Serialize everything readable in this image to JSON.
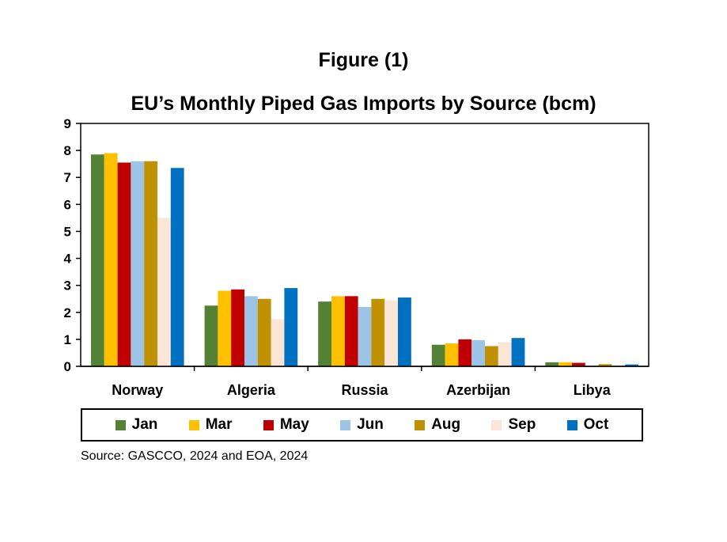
{
  "figure_label": "Figure (1)",
  "source": "Source: GASCCO, 2024 and EOA, 2024",
  "chart_data": {
    "type": "bar",
    "title": "EU’s Monthly Piped Gas Imports by Source (bcm)",
    "xlabel": "",
    "ylabel": "",
    "ylim": [
      0,
      9
    ],
    "yticks": [
      0,
      1,
      2,
      3,
      4,
      5,
      6,
      7,
      8,
      9
    ],
    "grid": false,
    "legend_position": "bottom",
    "categories": [
      "Norway",
      "Algeria",
      "Russia",
      "Azerbijan",
      "Libya"
    ],
    "series": [
      {
        "name": "Jan",
        "color": "#548235",
        "values": [
          7.85,
          2.25,
          2.4,
          0.8,
          0.15
        ]
      },
      {
        "name": "Mar",
        "color": "#ffc000",
        "values": [
          7.9,
          2.8,
          2.6,
          0.85,
          0.15
        ]
      },
      {
        "name": "May",
        "color": "#c00000",
        "values": [
          7.55,
          2.85,
          2.6,
          1.0,
          0.13
        ]
      },
      {
        "name": "Jun",
        "color": "#9dc3e6",
        "values": [
          7.6,
          2.6,
          2.2,
          0.97,
          0.02
        ]
      },
      {
        "name": "Aug",
        "color": "#bf9000",
        "values": [
          7.6,
          2.5,
          2.5,
          0.75,
          0.08
        ]
      },
      {
        "name": "Sep",
        "color": "#fbe5d6",
        "values": [
          5.5,
          1.75,
          2.45,
          0.9,
          0.02
        ]
      },
      {
        "name": "Oct",
        "color": "#0070c0",
        "values": [
          7.35,
          2.9,
          2.55,
          1.05,
          0.07
        ]
      }
    ]
  }
}
